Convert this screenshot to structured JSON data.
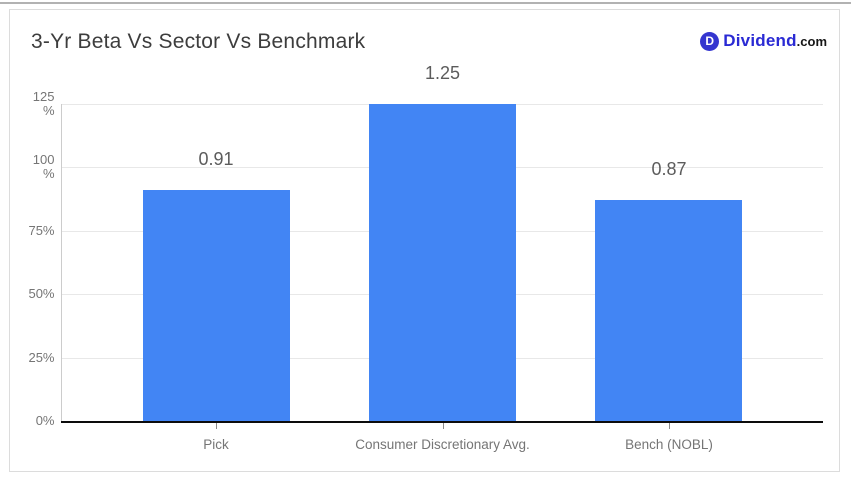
{
  "page": {
    "top_border_color": "#b2b2b2",
    "card_border_color": "#dcdcdc",
    "background": "#ffffff"
  },
  "header": {
    "logo": {
      "icon_letter": "D",
      "brand": "Dividend",
      "suffix": ".com",
      "brand_color": "#2a2ad4",
      "icon_color": "#3435cf"
    }
  },
  "chart_data": {
    "type": "bar",
    "title": "3-Yr Beta Vs Sector Vs Benchmark",
    "categories": [
      "Pick",
      "Consumer Discretionary Avg.",
      "Bench (NOBL)"
    ],
    "values": [
      0.91,
      1.25,
      0.87
    ],
    "value_labels": [
      "0.91",
      "1.25",
      "0.87"
    ],
    "y_ticks": [
      {
        "value": 0,
        "label": "0%"
      },
      {
        "value": 0.25,
        "label": "25%"
      },
      {
        "value": 0.5,
        "label": "50%"
      },
      {
        "value": 0.75,
        "label": "75%"
      },
      {
        "value": 1.0,
        "label": "100%"
      },
      {
        "value": 1.25,
        "label": "125%"
      }
    ],
    "ylim": [
      0,
      1.25
    ],
    "xlabel": "",
    "ylabel": "",
    "grid": true,
    "legend": "none",
    "bar_color": "#4285f4",
    "gridline_color": "#e8e8e8",
    "value_label_color": "#5c5c5c",
    "tick_label_color": "#757575"
  }
}
